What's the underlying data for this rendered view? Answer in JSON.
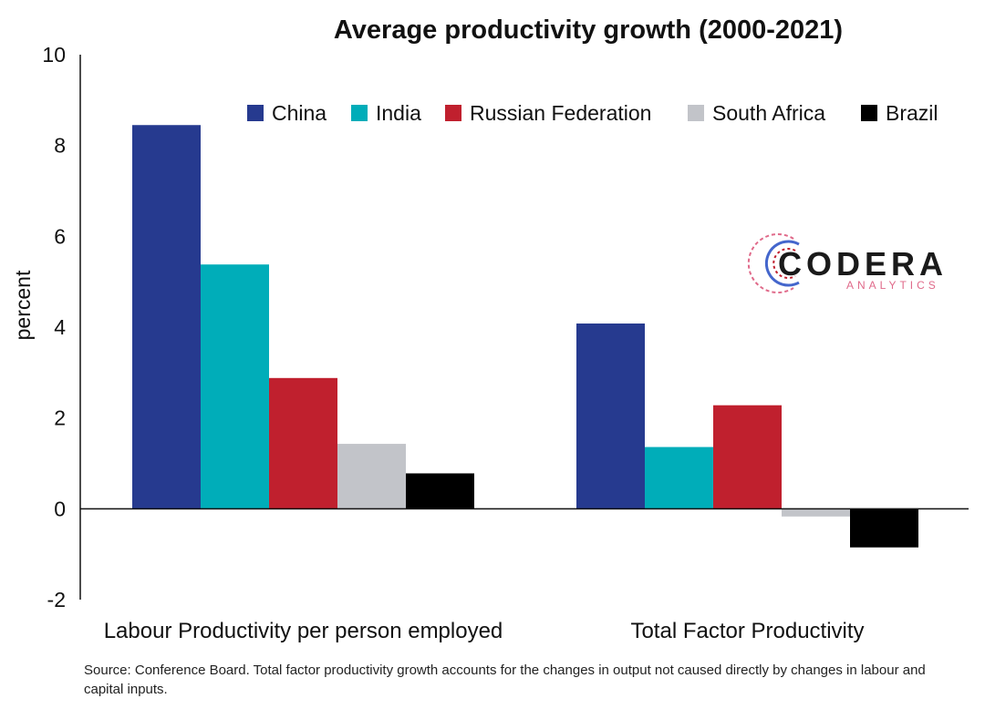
{
  "chart_data": {
    "type": "bar",
    "title": "Average productivity growth (2000-2021)",
    "ylabel": "percent",
    "xlabel": "",
    "ylim": [
      -2,
      10
    ],
    "yticks": [
      -2,
      0,
      2,
      4,
      6,
      8,
      10
    ],
    "categories": [
      "Labour Productivity per person employed",
      "Total Factor Productivity"
    ],
    "legend_position": "top-right",
    "grid": false,
    "series": [
      {
        "name": "China",
        "color": "#263a8f",
        "values": [
          8.45,
          4.08
        ]
      },
      {
        "name": "India",
        "color": "#00adb9",
        "values": [
          5.38,
          1.36
        ]
      },
      {
        "name": "Russian Federation",
        "color": "#c0202e",
        "values": [
          2.88,
          2.28
        ]
      },
      {
        "name": "South Africa",
        "color": "#c2c4c9",
        "values": [
          1.43,
          -0.17
        ]
      },
      {
        "name": "Brazil",
        "color": "#000000",
        "values": [
          0.78,
          -0.85
        ]
      }
    ]
  },
  "source_note": "Source: Conference Board. Total factor productivity growth accounts for the changes in output not caused directly by changes in labour and capital inputs.",
  "logo": {
    "name": "CODERA",
    "tagline": "ANALYTICS"
  }
}
